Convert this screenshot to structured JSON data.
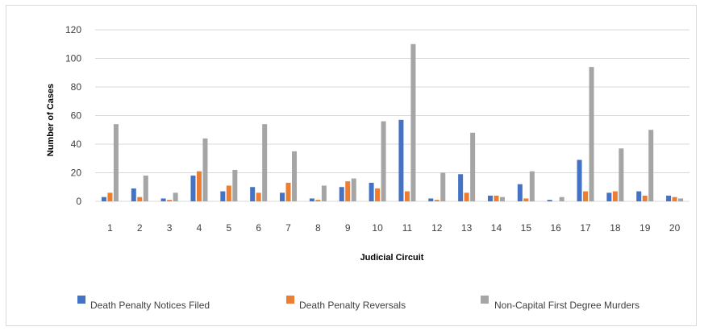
{
  "chart_data": {
    "type": "bar",
    "title": "",
    "xlabel": "Judicial Circuit",
    "ylabel": "Number of Cases",
    "ylim": [
      0,
      120
    ],
    "yticks": [
      0,
      20,
      40,
      60,
      80,
      100,
      120
    ],
    "grid": true,
    "legend_position": "bottom",
    "categories": [
      "1",
      "2",
      "3",
      "4",
      "5",
      "6",
      "7",
      "8",
      "9",
      "10",
      "11",
      "12",
      "13",
      "14",
      "15",
      "16",
      "17",
      "18",
      "19",
      "20"
    ],
    "series": [
      {
        "name": "Death Penalty Notices Filed",
        "color": "#4472C4",
        "values": [
          3,
          9,
          2,
          18,
          7,
          10,
          6,
          2,
          10,
          13,
          57,
          2,
          19,
          4,
          12,
          1,
          29,
          6,
          7,
          4
        ]
      },
      {
        "name": "Death Penalty Reversals",
        "color": "#ED7D31",
        "values": [
          6,
          3,
          1,
          21,
          11,
          6,
          13,
          1,
          14,
          9,
          7,
          1,
          6,
          4,
          2,
          0,
          7,
          7,
          4,
          3
        ]
      },
      {
        "name": "Non-Capital First Degree Murders",
        "color": "#A5A5A5",
        "values": [
          54,
          18,
          6,
          44,
          22,
          54,
          35,
          11,
          16,
          56,
          110,
          20,
          48,
          3,
          21,
          3,
          94,
          37,
          50,
          2
        ]
      }
    ]
  }
}
